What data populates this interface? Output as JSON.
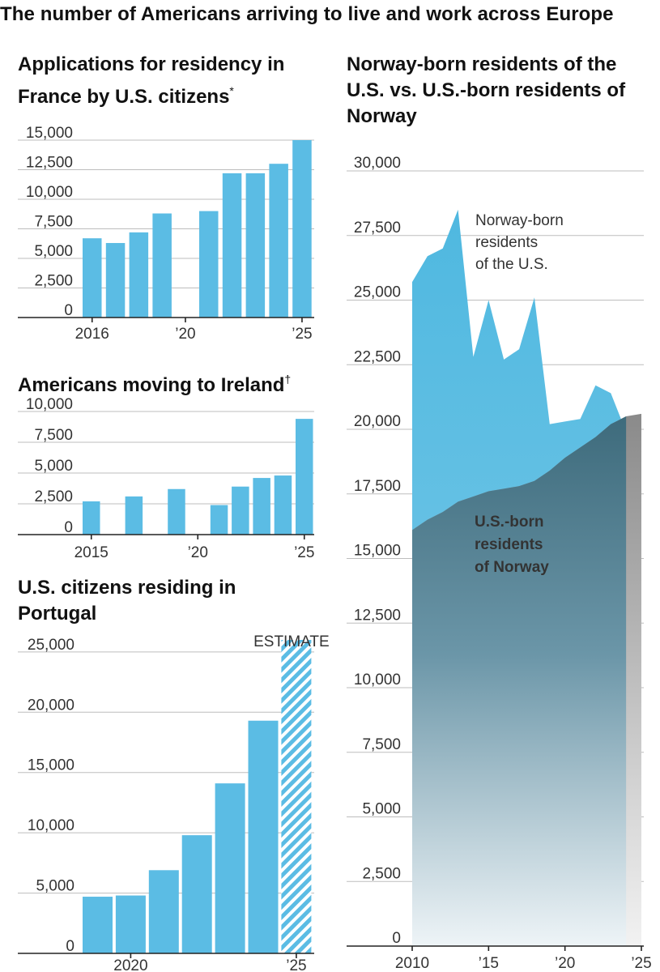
{
  "title": "The number of Americans arriving to live and work across Europe",
  "panels": {
    "france": {
      "title": "Applications for residency in France by U.S. citizens",
      "note_mark": "*"
    },
    "ireland": {
      "title": "Americans moving to Ireland",
      "note_mark": "†"
    },
    "portugal": {
      "title": "U.S. citizens residing in Portugal",
      "estimate_label": "ESTIMATE"
    },
    "norway": {
      "title": "Norway-born residents of the U.S. vs. U.S.-born residents of Norway"
    }
  },
  "colors": {
    "bar": "#5bbce4",
    "norway_area": "#4fb8e0",
    "us_area_top": "#3e6b7c",
    "gray_area": "#8a8a8a"
  },
  "chart_data": [
    {
      "id": "france",
      "type": "bar",
      "title": "Applications for residency in France by U.S. citizens",
      "x": [
        2016,
        2017,
        2018,
        2019,
        2020,
        2021,
        2022,
        2023,
        2024,
        2025
      ],
      "values": [
        6700,
        6300,
        7200,
        8800,
        null,
        9000,
        12200,
        12200,
        13000,
        15000
      ],
      "ylim": [
        0,
        15000
      ],
      "yticks": [
        "15,000",
        "12,500",
        "10,000",
        "7,500",
        "5,000",
        "2,500",
        "0"
      ],
      "ytick_values": [
        15000,
        12500,
        10000,
        7500,
        5000,
        2500,
        0
      ],
      "xtick_labels": [
        "2016",
        "’20",
        "’25"
      ],
      "xtick_years": [
        2016,
        2020,
        2025
      ]
    },
    {
      "id": "ireland",
      "type": "bar",
      "title": "Americans moving to Ireland",
      "x": [
        2015,
        2016,
        2017,
        2018,
        2019,
        2020,
        2021,
        2022,
        2023,
        2024,
        2025
      ],
      "values": [
        2700,
        null,
        3100,
        null,
        3700,
        null,
        2400,
        3900,
        4600,
        4800,
        9400
      ],
      "ylim": [
        0,
        10000
      ],
      "yticks": [
        "10,000",
        "7,500",
        "5,000",
        "2,500",
        "0"
      ],
      "ytick_values": [
        10000,
        7500,
        5000,
        2500,
        0
      ],
      "xtick_labels": [
        "2015",
        "’20",
        "’25"
      ],
      "xtick_years": [
        2015,
        2020,
        2025
      ]
    },
    {
      "id": "portugal",
      "type": "bar",
      "title": "U.S. citizens residing in Portugal",
      "x": [
        2019,
        2020,
        2021,
        2022,
        2023,
        2024,
        2025
      ],
      "values": [
        4700,
        4800,
        6900,
        9800,
        14100,
        19300,
        26000
      ],
      "estimate": [
        false,
        false,
        false,
        false,
        false,
        false,
        true
      ],
      "ylim": [
        0,
        26000
      ],
      "yticks": [
        "25,000",
        "20,000",
        "15,000",
        "10,000",
        "5,000",
        "0"
      ],
      "ytick_values": [
        25000,
        20000,
        15000,
        10000,
        5000,
        0
      ],
      "xtick_labels": [
        "2020",
        "’25"
      ],
      "xtick_years": [
        2020,
        2025
      ],
      "annotation": "ESTIMATE"
    },
    {
      "id": "norway",
      "type": "area",
      "title": "Norway-born residents of the U.S. vs. U.S.-born residents of Norway",
      "x": [
        2010,
        2011,
        2012,
        2013,
        2014,
        2015,
        2016,
        2017,
        2018,
        2019,
        2020,
        2021,
        2022,
        2023,
        2024,
        2025
      ],
      "series": [
        {
          "name": "Norway-born residents of the U.S.",
          "values": [
            25700,
            26700,
            27000,
            28500,
            22800,
            25000,
            22700,
            23100,
            25100,
            20200,
            20300,
            20400,
            21700,
            21400,
            19900,
            null
          ]
        },
        {
          "name": "U.S.-born residents of Norway",
          "values": [
            16100,
            16500,
            16800,
            17200,
            17400,
            17600,
            17700,
            17800,
            18000,
            18400,
            18900,
            19300,
            19700,
            20200,
            20500,
            20600
          ]
        }
      ],
      "ylim": [
        0,
        30000
      ],
      "yticks": [
        "30,000",
        "27,500",
        "25,000",
        "22,500",
        "20,000",
        "17,500",
        "15,000",
        "12,500",
        "10,000",
        "7,500",
        "5,000",
        "2,500",
        "0"
      ],
      "ytick_values": [
        30000,
        27500,
        25000,
        22500,
        20000,
        17500,
        15000,
        12500,
        10000,
        7500,
        5000,
        2500,
        0
      ],
      "xtick_labels": [
        "2010",
        "’15",
        "’20",
        "’25"
      ],
      "xtick_years": [
        2010,
        2015,
        2020,
        2025
      ],
      "labels": {
        "norway_born": [
          "Norway-born",
          "residents",
          "of the U.S."
        ],
        "us_born": [
          "U.S.-born",
          "residents",
          "of Norway"
        ]
      }
    }
  ]
}
